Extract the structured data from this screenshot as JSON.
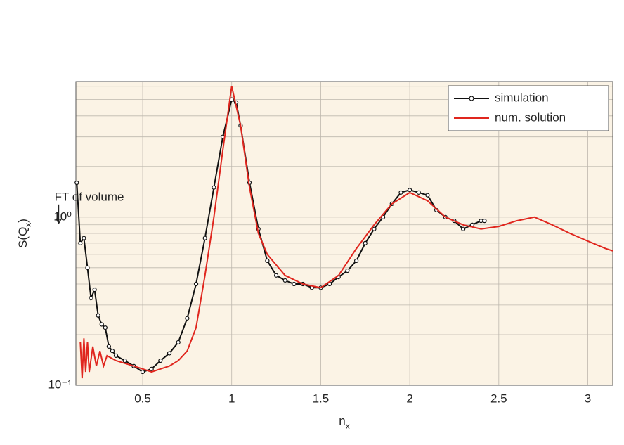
{
  "chart_data": {
    "type": "line",
    "xlabel_parts": [
      {
        "text": "n"
      },
      {
        "text": "x",
        "sub": true
      }
    ],
    "ylabel_parts": [
      {
        "text": "S(Q"
      },
      {
        "text": "x",
        "sub": true
      },
      {
        "text": ")"
      }
    ],
    "annotation": {
      "text": "FT of volume",
      "x": 0.155,
      "y": 1.0
    },
    "xlim": [
      0.125,
      3.14
    ],
    "ylim": [
      0.1,
      6.4
    ],
    "log_y": true,
    "grid": true,
    "xticks": [
      0.5,
      1,
      1.5,
      2,
      2.5,
      3
    ],
    "yticks": [
      {
        "value": 0.1,
        "label": "10⁻¹"
      },
      {
        "value": 1,
        "label": "10⁰"
      }
    ],
    "yminor": [
      0.2,
      0.3,
      0.4,
      0.5,
      0.6,
      0.7,
      0.8,
      0.9,
      2,
      3,
      4,
      5,
      6
    ],
    "legend": "upper right",
    "series": [
      {
        "name": "simulation",
        "color": "#111111",
        "markers": true,
        "x": [
          0.13,
          0.15,
          0.17,
          0.19,
          0.21,
          0.23,
          0.25,
          0.27,
          0.29,
          0.31,
          0.33,
          0.35,
          0.4,
          0.45,
          0.5,
          0.55,
          0.6,
          0.65,
          0.7,
          0.75,
          0.8,
          0.85,
          0.9,
          0.95,
          1.0,
          1.025,
          1.05,
          1.1,
          1.15,
          1.2,
          1.25,
          1.3,
          1.35,
          1.4,
          1.45,
          1.5,
          1.55,
          1.6,
          1.65,
          1.7,
          1.75,
          1.8,
          1.85,
          1.9,
          1.95,
          2.0,
          2.05,
          2.1,
          2.15,
          2.2,
          2.25,
          2.3,
          2.35,
          2.4,
          2.42
        ],
        "values": [
          1.6,
          0.7,
          0.75,
          0.5,
          0.33,
          0.37,
          0.26,
          0.23,
          0.22,
          0.17,
          0.16,
          0.15,
          0.14,
          0.13,
          0.12,
          0.125,
          0.14,
          0.155,
          0.18,
          0.25,
          0.4,
          0.75,
          1.5,
          3.0,
          5.0,
          4.8,
          3.5,
          1.6,
          0.85,
          0.55,
          0.45,
          0.42,
          0.4,
          0.4,
          0.38,
          0.38,
          0.4,
          0.44,
          0.48,
          0.55,
          0.7,
          0.85,
          1.0,
          1.2,
          1.4,
          1.45,
          1.4,
          1.35,
          1.1,
          1.0,
          0.95,
          0.85,
          0.9,
          0.95,
          0.95
        ]
      },
      {
        "name": "num. solution",
        "color": "#e0261e",
        "markers": false,
        "x": [
          0.15,
          0.16,
          0.17,
          0.18,
          0.19,
          0.2,
          0.22,
          0.24,
          0.26,
          0.28,
          0.3,
          0.35,
          0.4,
          0.45,
          0.5,
          0.55,
          0.6,
          0.65,
          0.7,
          0.75,
          0.8,
          0.85,
          0.9,
          0.95,
          1.0,
          1.05,
          1.1,
          1.15,
          1.2,
          1.3,
          1.4,
          1.5,
          1.6,
          1.7,
          1.8,
          1.9,
          2.0,
          2.1,
          2.2,
          2.3,
          2.4,
          2.5,
          2.6,
          2.7,
          2.8,
          2.9,
          3.0,
          3.1,
          3.14
        ],
        "values": [
          0.18,
          0.11,
          0.19,
          0.12,
          0.18,
          0.12,
          0.17,
          0.13,
          0.16,
          0.13,
          0.15,
          0.14,
          0.135,
          0.13,
          0.125,
          0.12,
          0.125,
          0.13,
          0.14,
          0.16,
          0.22,
          0.45,
          1.0,
          2.5,
          6.0,
          3.5,
          1.5,
          0.8,
          0.6,
          0.45,
          0.4,
          0.38,
          0.45,
          0.65,
          0.9,
          1.2,
          1.4,
          1.25,
          1.0,
          0.9,
          0.85,
          0.88,
          0.95,
          1.0,
          0.9,
          0.8,
          0.72,
          0.65,
          0.63
        ]
      }
    ]
  }
}
